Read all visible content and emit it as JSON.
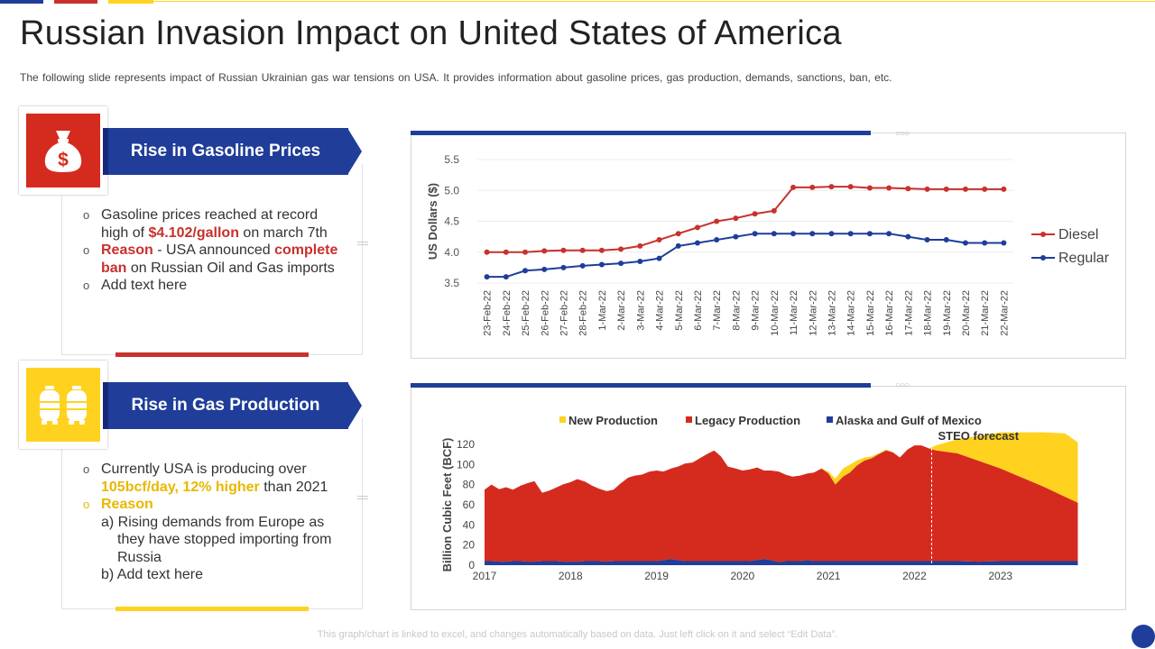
{
  "title": "Russian Invasion Impact on United States of America",
  "subtitle": "The following slide represents impact of Russian Ukrainian gas war tensions on USA. It provides information about gasoline prices, gas production, demands, sanctions, ban, etc.",
  "colors": {
    "blue": "#1f3d99",
    "red": "#c8312d",
    "yellow": "#ffd21f"
  },
  "section1": {
    "icon": "money-bag-icon",
    "heading": "Rise in Gasoline Prices",
    "b1_text1": "Gasoline prices reached at record",
    "b1_text2": "high of ",
    "b1_highlight": "$4.102/gallon",
    "b1_text3": " on march 7th",
    "b2_reason": "Reason",
    "b2_text1": " - USA announced ",
    "b2_highlight1": "complete",
    "b2_highlight2": "ban",
    "b2_text2": " on Russian Oil and Gas imports",
    "b3_text": "Add text here"
  },
  "section2": {
    "icon": "gas-cylinders-icon",
    "heading": "Rise in Gas Production",
    "b1_text1": "Currently  USA is producing over",
    "b1_highlight": "105bcf/day, 12% higher",
    "b1_text2": " than 2021",
    "b2_reason": "Reason",
    "a_text1": "a) Rising demands from Europe as",
    "a_text2": "they have stopped importing from",
    "a_text3": "Russia",
    "b_text": "b) Add text here"
  },
  "chart_data": [
    {
      "type": "line",
      "title": "",
      "ylabel": "US Dollars ($)",
      "xlabel": "",
      "ylim": [
        3.5,
        5.5
      ],
      "yticks": [
        "3.5",
        "4.0",
        "4.5",
        "5.0",
        "5.5"
      ],
      "categories": [
        "23-Feb-22",
        "24-Feb-22",
        "25-Feb-22",
        "26-Feb-22",
        "27-Feb-22",
        "28-Feb-22",
        "1-Mar-22",
        "2-Mar-22",
        "3-Mar-22",
        "4-Mar-22",
        "5-Mar-22",
        "6-Mar-22",
        "7-Mar-22",
        "8-Mar-22",
        "9-Mar-22",
        "10-Mar-22",
        "11-Mar-22",
        "12-Mar-22",
        "13-Mar-22",
        "14-Mar-22",
        "15-Mar-22",
        "16-Mar-22",
        "17-Mar-22",
        "18-Mar-22",
        "19-Mar-22",
        "20-Mar-22",
        "21-Mar-22",
        "22-Mar-22"
      ],
      "series": [
        {
          "name": "Regular",
          "color": "#1f3d99",
          "values": [
            3.6,
            3.6,
            3.7,
            3.72,
            3.75,
            3.78,
            3.8,
            3.82,
            3.85,
            3.9,
            4.1,
            4.15,
            4.2,
            4.25,
            4.3,
            4.3,
            4.3,
            4.3,
            4.3,
            4.3,
            4.3,
            4.3,
            4.25,
            4.2,
            4.2,
            4.15,
            4.15,
            4.15
          ]
        },
        {
          "name": "Diesel",
          "color": "#c8312d",
          "values": [
            4.0,
            4.0,
            4.0,
            4.02,
            4.03,
            4.03,
            4.03,
            4.05,
            4.1,
            4.2,
            4.3,
            4.4,
            4.5,
            4.55,
            4.62,
            4.67,
            5.05,
            5.05,
            5.06,
            5.06,
            5.04,
            5.04,
            5.03,
            5.02,
            5.02,
            5.02,
            5.02,
            5.02
          ]
        }
      ],
      "legend": "right"
    },
    {
      "type": "area",
      "title": "",
      "ylabel": "Billion Cubic Feet (BCF)",
      "xlabel": "",
      "ylim": [
        0,
        120
      ],
      "yticks": [
        "0",
        "20",
        "40",
        "60",
        "80",
        "100",
        "120"
      ],
      "xlim": [
        2017,
        2024
      ],
      "xticks": [
        "2017",
        "2018",
        "2019",
        "2020",
        "2021",
        "2022",
        "2023"
      ],
      "annotation": "STEO forecast",
      "forecast_start": 2022.2,
      "legend": "top",
      "x": [
        2017.0,
        2017.08,
        2017.17,
        2017.25,
        2017.33,
        2017.42,
        2017.5,
        2017.58,
        2017.67,
        2017.75,
        2017.83,
        2017.92,
        2018.0,
        2018.08,
        2018.17,
        2018.25,
        2018.33,
        2018.42,
        2018.5,
        2018.58,
        2018.67,
        2018.75,
        2018.83,
        2018.92,
        2019.0,
        2019.08,
        2019.17,
        2019.25,
        2019.33,
        2019.42,
        2019.5,
        2019.58,
        2019.67,
        2019.75,
        2019.83,
        2019.92,
        2020.0,
        2020.08,
        2020.17,
        2020.25,
        2020.33,
        2020.42,
        2020.5,
        2020.58,
        2020.67,
        2020.75,
        2020.83,
        2020.92,
        2021.0,
        2021.08,
        2021.17,
        2021.25,
        2021.33,
        2021.42,
        2021.5,
        2021.58,
        2021.67,
        2021.75,
        2021.83,
        2021.92,
        2022.0,
        2022.08,
        2022.17,
        2022.25,
        2022.5,
        2022.75,
        2023.0,
        2023.25,
        2023.5,
        2023.75,
        2023.9
      ],
      "series": [
        {
          "name": "Alaska and Gulf of Mexico",
          "color": "#1f3d99",
          "values": [
            4,
            4,
            3.5,
            3.5,
            4,
            4,
            3.5,
            3.5,
            4,
            4,
            4,
            3.5,
            3.5,
            3.5,
            4,
            4,
            4,
            3.5,
            4,
            4,
            4,
            4,
            4,
            4,
            4,
            5,
            6,
            5,
            4,
            4,
            4,
            4,
            4,
            4,
            4,
            4,
            4,
            4,
            5,
            6,
            5,
            3,
            4,
            4,
            4,
            5,
            4,
            4,
            4,
            4,
            4,
            4,
            4,
            4,
            4,
            4,
            4,
            4,
            4,
            4,
            4,
            4,
            4,
            4,
            4,
            3.5,
            4,
            4,
            4,
            4,
            4
          ]
        },
        {
          "name": "Legacy Production",
          "color": "#d52b1e",
          "values": [
            71,
            76,
            72,
            74,
            71,
            75,
            78,
            80,
            68,
            70,
            73,
            77,
            79,
            82,
            79,
            75,
            72,
            70,
            71,
            77,
            83,
            85,
            86,
            89,
            90,
            88,
            90,
            93,
            97,
            98,
            102,
            106,
            110,
            104,
            94,
            92,
            90,
            91,
            92,
            88,
            89,
            90,
            86,
            84,
            85,
            86,
            88,
            92,
            87,
            76,
            84,
            88,
            95,
            100,
            102,
            106,
            110,
            108,
            103,
            111,
            115,
            115,
            112,
            110,
            107,
            100,
            92,
            83,
            74,
            64,
            58
          ]
        },
        {
          "name": "New Production",
          "color": "#ffd21f",
          "values": [
            0,
            0,
            0,
            0,
            0,
            0,
            0,
            0,
            0,
            0,
            0,
            0,
            0,
            0,
            0,
            0,
            0,
            0,
            0,
            0,
            0,
            0,
            0,
            0,
            0,
            0,
            0,
            0,
            0,
            0,
            0,
            0,
            0,
            0,
            0,
            0,
            0,
            0,
            0,
            0,
            0,
            0,
            0,
            0,
            0,
            0,
            0,
            0,
            2,
            6,
            8,
            8,
            5,
            3,
            2,
            1,
            1,
            0,
            0,
            0,
            0,
            0,
            0,
            5,
            14,
            25,
            36,
            45,
            54,
            63,
            60
          ]
        }
      ]
    }
  ],
  "footer": "This graph/chart is linked to excel, and changes automatically based on data. Just left click on it and select “Edit Data”."
}
